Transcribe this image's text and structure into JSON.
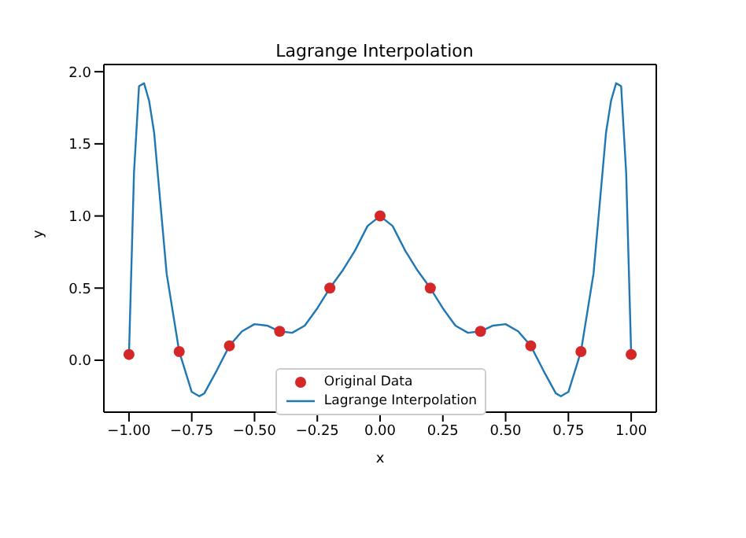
{
  "chart_data": {
    "type": "line",
    "title": "Lagrange Interpolation",
    "xlabel": "x",
    "ylabel": "y",
    "xlim": [
      -1.1,
      1.1
    ],
    "xticks": [
      {
        "value": -1,
        "label": "−1.00"
      },
      {
        "value": -0.75,
        "label": "−0.75"
      },
      {
        "value": -0.5,
        "label": "−0.50"
      },
      {
        "value": -0.25,
        "label": "−0.25"
      },
      {
        "value": 0,
        "label": "0.00"
      },
      {
        "value": 0.25,
        "label": "0.25"
      },
      {
        "value": 0.5,
        "label": "0.50"
      },
      {
        "value": 0.75,
        "label": "0.75"
      },
      {
        "value": 1,
        "label": "1.00"
      }
    ],
    "ylim": [
      -0.36,
      2.05
    ],
    "yticks": [
      {
        "value": 0,
        "label": "0.0"
      },
      {
        "value": 0.5,
        "label": "0.5"
      },
      {
        "value": 1,
        "label": "1.0"
      },
      {
        "value": 1.5,
        "label": "1.5"
      },
      {
        "value": 2,
        "label": "2.0"
      }
    ],
    "grid": false,
    "legend": "bottom",
    "series": [
      {
        "name": "Original Data",
        "type": "scatter",
        "color": "#d62728",
        "marker": "circle",
        "x": [
          -1,
          -0.8,
          -0.6,
          -0.4,
          -0.2,
          0,
          0.2,
          0.4,
          0.6,
          0.8,
          1
        ],
        "values": [
          0.04,
          0.06,
          0.1,
          0.2,
          0.5,
          1.0,
          0.5,
          0.2,
          0.1,
          0.06,
          0.04
        ]
      },
      {
        "name": "Lagrange Interpolation",
        "color": "#1f77b4",
        "marker": "none",
        "line_style": "solid",
        "x": [
          -1,
          -0.98,
          -0.96,
          -0.94,
          -0.92,
          -0.9,
          -0.85,
          -0.8,
          -0.75,
          -0.72,
          -0.7,
          -0.65,
          -0.6,
          -0.55,
          -0.5,
          -0.45,
          -0.4,
          -0.35,
          -0.3,
          -0.25,
          -0.2,
          -0.15,
          -0.1,
          -0.05,
          0,
          0.05,
          0.1,
          0.15,
          0.2,
          0.25,
          0.3,
          0.35,
          0.4,
          0.45,
          0.5,
          0.55,
          0.6,
          0.65,
          0.7,
          0.72,
          0.75,
          0.8,
          0.85,
          0.9,
          0.92,
          0.94,
          0.96,
          0.98,
          1
        ],
        "values": [
          0.04,
          1.3,
          1.9,
          1.92,
          1.8,
          1.58,
          0.6,
          0.06,
          -0.22,
          -0.25,
          -0.23,
          -0.07,
          0.1,
          0.2,
          0.25,
          0.24,
          0.2,
          0.19,
          0.24,
          0.36,
          0.5,
          0.62,
          0.76,
          0.93,
          1.0,
          0.93,
          0.76,
          0.62,
          0.5,
          0.36,
          0.24,
          0.19,
          0.2,
          0.24,
          0.25,
          0.2,
          0.1,
          -0.07,
          -0.23,
          -0.25,
          -0.22,
          0.06,
          0.6,
          1.58,
          1.8,
          1.92,
          1.9,
          1.3,
          0.04
        ]
      }
    ]
  }
}
